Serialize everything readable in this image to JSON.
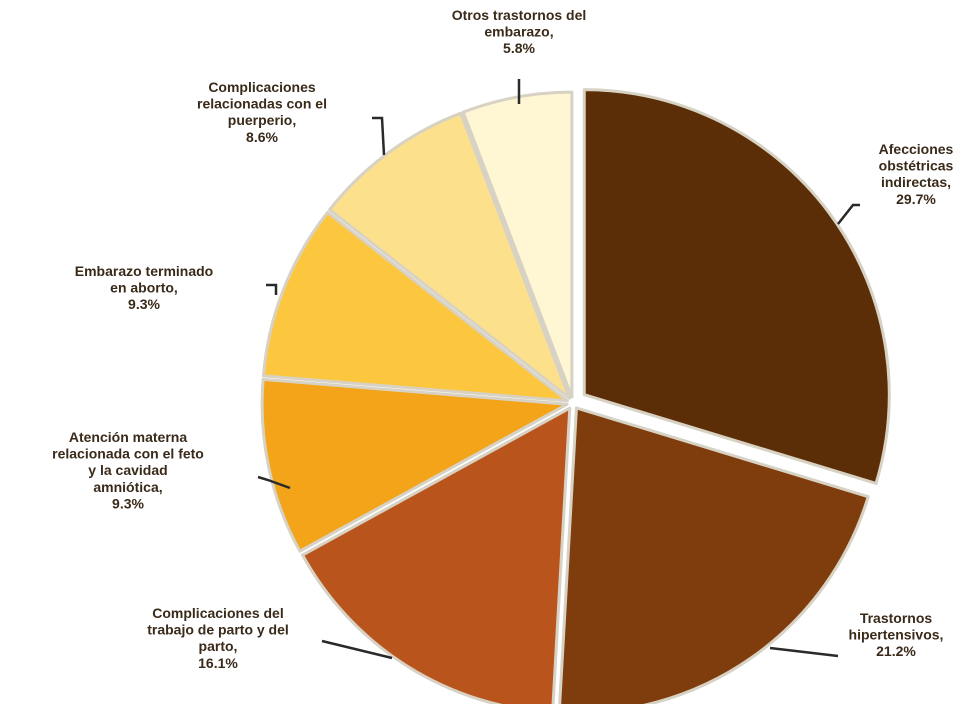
{
  "chart_data": {
    "type": "pie",
    "title": "",
    "slices": [
      {
        "name": "Afecciones obstétricas indirectas",
        "value": 29.7,
        "color": "#5c2e07",
        "label_lines": [
          "Afecciones",
          "obstétricas",
          "indirectas,",
          "29.7%"
        ]
      },
      {
        "name": "Trastornos hipertensivos",
        "value": 21.2,
        "color": "#7f3d0d",
        "label_lines": [
          "Trastornos",
          "hipertensivos,",
          "21.2%"
        ]
      },
      {
        "name": "Complicaciones del trabajo de parto y del parto",
        "value": 16.1,
        "color": "#b8541c",
        "label_lines": [
          "Complicaciones del",
          "trabajo de parto y del",
          "parto,",
          "16.1%"
        ]
      },
      {
        "name": "Atención materna relacionada con el feto y la cavidad amniótica",
        "value": 9.3,
        "color": "#f3a419",
        "label_lines": [
          "Atención materna",
          "relacionada con el feto",
          "y la cavidad",
          "amniótica,",
          "9.3%"
        ]
      },
      {
        "name": "Embarazo terminado en aborto",
        "value": 9.3,
        "color": "#fcc63f",
        "label_lines": [
          "Embarazo terminado",
          "en aborto,",
          "9.3%"
        ]
      },
      {
        "name": "Complicaciones relacionadas con el puerperio",
        "value": 8.6,
        "color": "#fde08c",
        "label_lines": [
          "Complicaciones",
          "relacionadas con el",
          "puerperio,",
          "8.6%"
        ]
      },
      {
        "name": "Otros trastornos del embarazo",
        "value": 5.8,
        "color": "#fff6d4",
        "label_lines": [
          "Otros trastornos del",
          "embarazo,",
          "5.8%"
        ]
      }
    ]
  }
}
